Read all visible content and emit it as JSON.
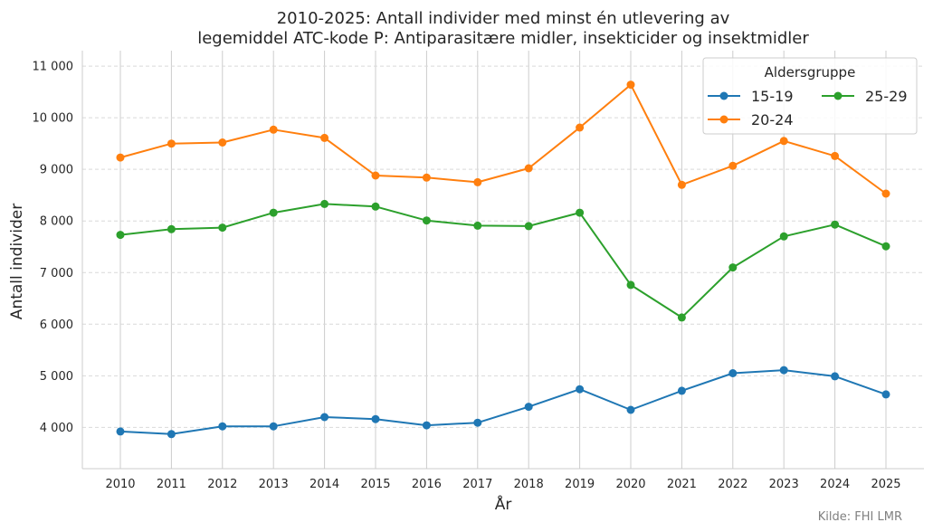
{
  "chart_data": {
    "type": "line",
    "title_line1": "2010-2025: Antall individer med minst én utlevering av",
    "title_line2": "legemiddel ATC-kode P: Antiparasitære midler, insekticider og insektmidler",
    "xlabel": "År",
    "ylabel": "Antall individer",
    "x": [
      2010,
      2011,
      2012,
      2013,
      2014,
      2015,
      2016,
      2017,
      2018,
      2019,
      2020,
      2021,
      2022,
      2023,
      2024,
      2025
    ],
    "x_tick_labels": [
      "2010",
      "2011",
      "2012",
      "2013",
      "2014",
      "2015",
      "2016",
      "2017",
      "2018",
      "2019",
      "2020",
      "2021",
      "2022",
      "2023",
      "2024",
      "2025"
    ],
    "ylim": [
      3200,
      11300
    ],
    "y_ticks": [
      4000,
      5000,
      6000,
      7000,
      8000,
      9000,
      10000,
      11000
    ],
    "y_tick_labels": [
      "4 000",
      "5 000",
      "6 000",
      "7 000",
      "8 000",
      "9 000",
      "10 000",
      "11 000"
    ],
    "grid": true,
    "legend_title": "Aldersgruppe",
    "legend_position": "top-right",
    "series": [
      {
        "name": "15-19",
        "color": "#1f77b4",
        "values": [
          3920,
          3870,
          4020,
          4020,
          4200,
          4160,
          4040,
          4090,
          4400,
          4740,
          4340,
          4710,
          5050,
          5110,
          4990,
          4640
        ]
      },
      {
        "name": "20-24",
        "color": "#ff7f0e",
        "values": [
          9230,
          9500,
          9520,
          9770,
          9610,
          8880,
          8840,
          8750,
          9020,
          9810,
          10640,
          8700,
          9070,
          9550,
          9260,
          8530
        ]
      },
      {
        "name": "25-29",
        "color": "#2ca02c",
        "values": [
          7730,
          7840,
          7870,
          8160,
          8330,
          8280,
          8010,
          7910,
          7900,
          8160,
          6760,
          6130,
          7100,
          7700,
          7930,
          7510
        ]
      }
    ],
    "source_note": "Kilde: FHI LMR"
  }
}
